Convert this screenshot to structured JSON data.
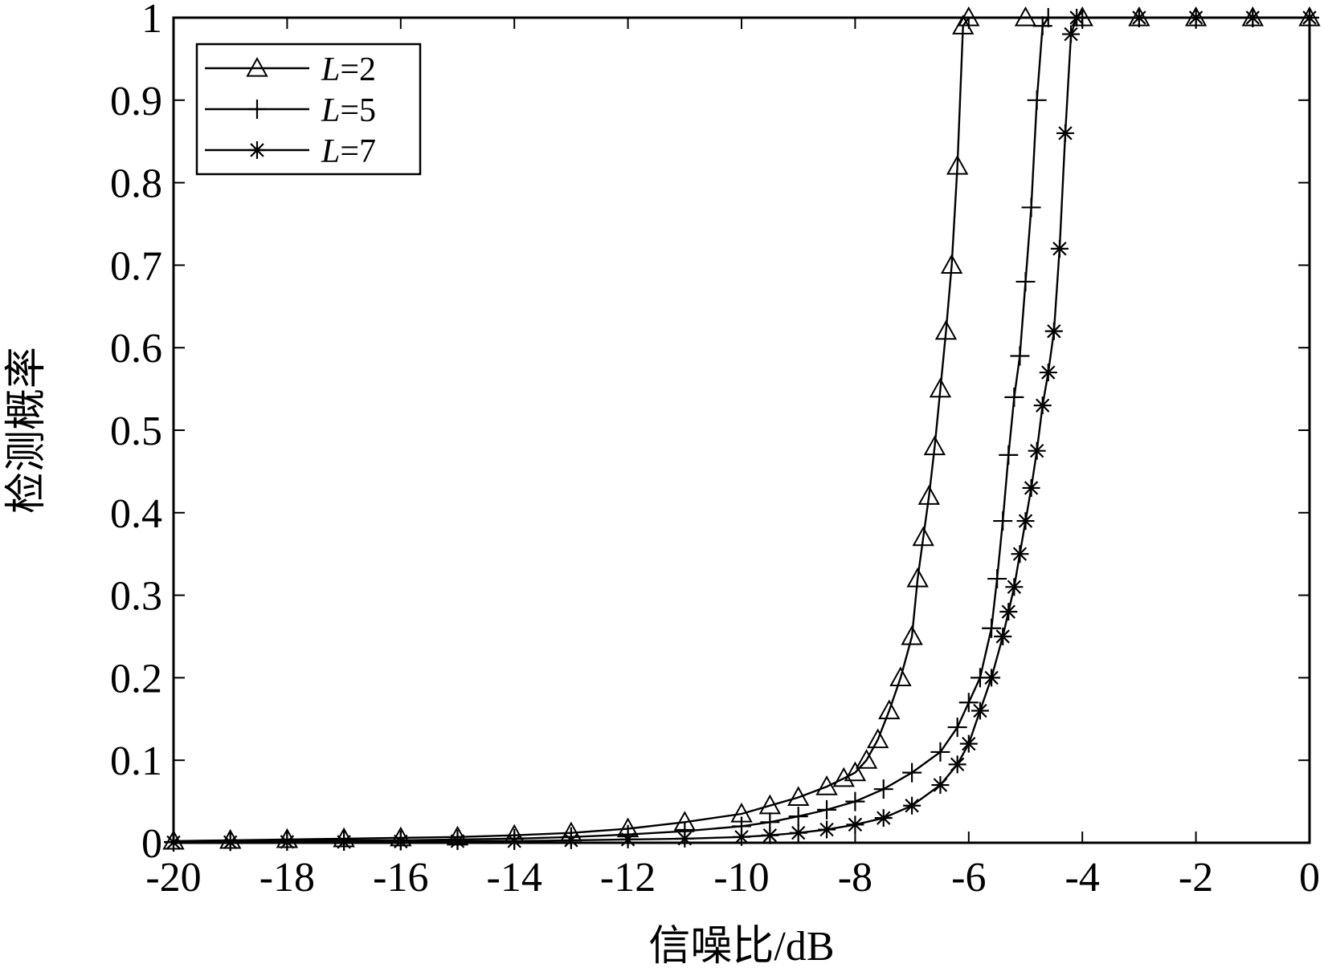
{
  "chart_data": {
    "type": "line",
    "xlabel": "信噪比/dB",
    "ylabel": "检测概率",
    "xlim": [
      -20,
      0
    ],
    "ylim": [
      0,
      1
    ],
    "x_ticks": [
      "-20",
      "-18",
      "-16",
      "-14",
      "-12",
      "-10",
      "-8",
      "-6",
      "-4",
      "-2",
      "0"
    ],
    "y_ticks": [
      "0",
      "0.1",
      "0.2",
      "0.3",
      "0.4",
      "0.5",
      "0.6",
      "0.7",
      "0.8",
      "0.9",
      "1"
    ],
    "grid": false,
    "legend_position": "top-left",
    "series": [
      {
        "name": "L=2",
        "marker": "triangle",
        "color": "#000000",
        "points": [
          [
            -20,
            0.002
          ],
          [
            -19,
            0.003
          ],
          [
            -18,
            0.004
          ],
          [
            -17,
            0.005
          ],
          [
            -16,
            0.006
          ],
          [
            -15,
            0.007
          ],
          [
            -14,
            0.009
          ],
          [
            -13,
            0.012
          ],
          [
            -12,
            0.017
          ],
          [
            -11,
            0.025
          ],
          [
            -10,
            0.035
          ],
          [
            -9.5,
            0.045
          ],
          [
            -9,
            0.055
          ],
          [
            -8.5,
            0.068
          ],
          [
            -8.2,
            0.078
          ],
          [
            -8.0,
            0.085
          ],
          [
            -7.8,
            0.1
          ],
          [
            -7.6,
            0.125
          ],
          [
            -7.4,
            0.16
          ],
          [
            -7.2,
            0.2
          ],
          [
            -7.0,
            0.25
          ],
          [
            -6.9,
            0.32
          ],
          [
            -6.8,
            0.37
          ],
          [
            -6.7,
            0.42
          ],
          [
            -6.6,
            0.48
          ],
          [
            -6.5,
            0.55
          ],
          [
            -6.4,
            0.62
          ],
          [
            -6.3,
            0.7
          ],
          [
            -6.2,
            0.82
          ],
          [
            -6.1,
            0.99
          ],
          [
            -6.0,
            1.0
          ],
          [
            -5.0,
            1.0
          ],
          [
            -4.0,
            1.0
          ],
          [
            -3.0,
            1.0
          ],
          [
            -2.0,
            1.0
          ],
          [
            -1.0,
            1.0
          ],
          [
            0,
            1.0
          ]
        ]
      },
      {
        "name": "L=5",
        "marker": "plus",
        "color": "#000000",
        "points": [
          [
            -20,
            0.001
          ],
          [
            -19,
            0.002
          ],
          [
            -18,
            0.002
          ],
          [
            -17,
            0.003
          ],
          [
            -16,
            0.003
          ],
          [
            -15,
            0.004
          ],
          [
            -14,
            0.005
          ],
          [
            -13,
            0.007
          ],
          [
            -12,
            0.01
          ],
          [
            -11,
            0.014
          ],
          [
            -10,
            0.02
          ],
          [
            -9.5,
            0.025
          ],
          [
            -9,
            0.032
          ],
          [
            -8.5,
            0.04
          ],
          [
            -8.0,
            0.05
          ],
          [
            -7.5,
            0.065
          ],
          [
            -7.0,
            0.085
          ],
          [
            -6.5,
            0.11
          ],
          [
            -6.2,
            0.14
          ],
          [
            -6.0,
            0.17
          ],
          [
            -5.8,
            0.2
          ],
          [
            -5.6,
            0.26
          ],
          [
            -5.5,
            0.32
          ],
          [
            -5.4,
            0.39
          ],
          [
            -5.3,
            0.47
          ],
          [
            -5.2,
            0.54
          ],
          [
            -5.1,
            0.59
          ],
          [
            -5.0,
            0.68
          ],
          [
            -4.9,
            0.77
          ],
          [
            -4.8,
            0.9
          ],
          [
            -4.7,
            0.99
          ],
          [
            -4.6,
            1.0
          ],
          [
            -4.0,
            1.0
          ],
          [
            -3.0,
            1.0
          ],
          [
            -2.0,
            1.0
          ],
          [
            -1.0,
            1.0
          ],
          [
            0,
            1.0
          ]
        ]
      },
      {
        "name": "L=7",
        "marker": "star",
        "color": "#000000",
        "points": [
          [
            -20,
            0.0005
          ],
          [
            -19,
            0.0007
          ],
          [
            -18,
            0.001
          ],
          [
            -17,
            0.001
          ],
          [
            -16,
            0.0015
          ],
          [
            -15,
            0.002
          ],
          [
            -14,
            0.002
          ],
          [
            -13,
            0.003
          ],
          [
            -12,
            0.004
          ],
          [
            -11,
            0.005
          ],
          [
            -10,
            0.007
          ],
          [
            -9.5,
            0.009
          ],
          [
            -9,
            0.012
          ],
          [
            -8.5,
            0.016
          ],
          [
            -8.0,
            0.022
          ],
          [
            -7.5,
            0.03
          ],
          [
            -7.0,
            0.045
          ],
          [
            -6.5,
            0.07
          ],
          [
            -6.2,
            0.095
          ],
          [
            -6.0,
            0.12
          ],
          [
            -5.8,
            0.16
          ],
          [
            -5.6,
            0.2
          ],
          [
            -5.4,
            0.25
          ],
          [
            -5.3,
            0.28
          ],
          [
            -5.2,
            0.31
          ],
          [
            -5.1,
            0.35
          ],
          [
            -5.0,
            0.39
          ],
          [
            -4.9,
            0.43
          ],
          [
            -4.8,
            0.475
          ],
          [
            -4.7,
            0.53
          ],
          [
            -4.6,
            0.57
          ],
          [
            -4.5,
            0.62
          ],
          [
            -4.4,
            0.72
          ],
          [
            -4.3,
            0.86
          ],
          [
            -4.2,
            0.98
          ],
          [
            -4.1,
            1.0
          ],
          [
            -3.0,
            1.0
          ],
          [
            -2.0,
            1.0
          ],
          [
            -1.0,
            1.0
          ],
          [
            0,
            1.0
          ]
        ]
      }
    ]
  }
}
